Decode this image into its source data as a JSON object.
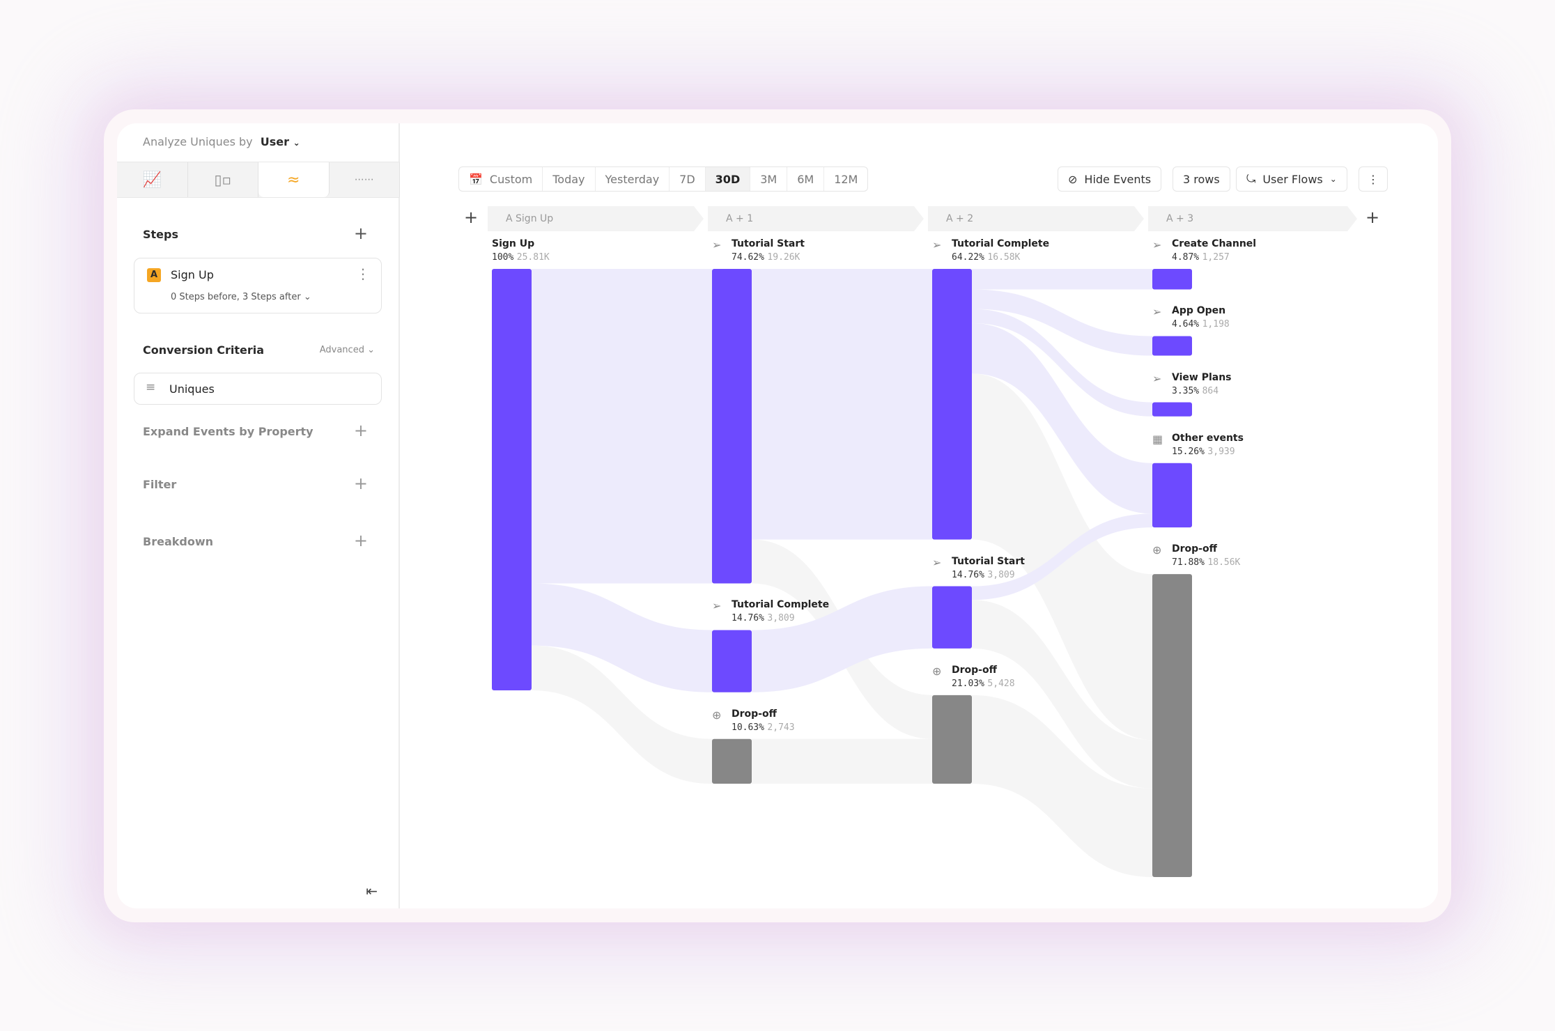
{
  "sidebar": {
    "analyze_label": "Analyze Uniques by",
    "analyze_value": "User",
    "tabs": [
      {
        "icon": "insights-icon"
      },
      {
        "icon": "funnels-icon"
      },
      {
        "icon": "flows-icon",
        "active": true
      },
      {
        "icon": "retention-icon"
      }
    ],
    "steps_title": "Steps",
    "step": {
      "badge": "A",
      "name": "Sign Up",
      "detail": "0 Steps before, 3 Steps after"
    },
    "conversion_title": "Conversion Criteria",
    "advanced_label": "Advanced",
    "uniques_label": "Uniques",
    "expand_label": "Expand Events by Property",
    "filter_label": "Filter",
    "breakdown_label": "Breakdown"
  },
  "toolbar": {
    "ranges": [
      "Custom",
      "Today",
      "Yesterday",
      "7D",
      "30D",
      "3M",
      "6M",
      "12M"
    ],
    "selected": "30D",
    "hide_events": "Hide Events",
    "rows": "3 rows",
    "view": "User Flows"
  },
  "colors": {
    "node": "#6d4aff",
    "dropoff": "#878787",
    "link": "#edebfc",
    "link_drop": "#f5f5f5",
    "active_tab": "#f5a623"
  },
  "chart_data": {
    "type": "sankey",
    "columns": [
      "A Sign Up",
      "A + 1",
      "A + 2",
      "A + 3"
    ],
    "nodes": [
      {
        "id": "s0",
        "col": 0,
        "name": "Sign Up",
        "pct": "100%",
        "count": "25.81K",
        "value": 100,
        "icon": ""
      },
      {
        "id": "a1ts",
        "col": 1,
        "name": "Tutorial Start",
        "pct": "74.62%",
        "count": "19.26K",
        "value": 74.62,
        "icon": "click"
      },
      {
        "id": "a1tc",
        "col": 1,
        "name": "Tutorial Complete",
        "pct": "14.76%",
        "count": "3,809",
        "value": 14.76,
        "icon": "click"
      },
      {
        "id": "a1do",
        "col": 1,
        "name": "Drop-off",
        "pct": "10.63%",
        "count": "2,743",
        "value": 10.63,
        "icon": "drop"
      },
      {
        "id": "a2tc",
        "col": 2,
        "name": "Tutorial Complete",
        "pct": "64.22%",
        "count": "16.58K",
        "value": 64.22,
        "icon": "click"
      },
      {
        "id": "a2ts",
        "col": 2,
        "name": "Tutorial Start",
        "pct": "14.76%",
        "count": "3,809",
        "value": 14.76,
        "icon": "click"
      },
      {
        "id": "a2do",
        "col": 2,
        "name": "Drop-off",
        "pct": "21.03%",
        "count": "5,428",
        "value": 21.03,
        "icon": "drop"
      },
      {
        "id": "a3cc",
        "col": 3,
        "name": "Create Channel",
        "pct": "4.87%",
        "count": "1,257",
        "value": 4.87,
        "icon": "click"
      },
      {
        "id": "a3ao",
        "col": 3,
        "name": "App Open",
        "pct": "4.64%",
        "count": "1,198",
        "value": 4.64,
        "icon": "click"
      },
      {
        "id": "a3vp",
        "col": 3,
        "name": "View Plans",
        "pct": "3.35%",
        "count": "864",
        "value": 3.35,
        "icon": "click"
      },
      {
        "id": "a3ot",
        "col": 3,
        "name": "Other events",
        "pct": "15.26%",
        "count": "3,939",
        "value": 15.26,
        "icon": "grid"
      },
      {
        "id": "a3do",
        "col": 3,
        "name": "Drop-off",
        "pct": "71.88%",
        "count": "18.56K",
        "value": 71.88,
        "icon": "drop"
      }
    ],
    "links": [
      {
        "s": "s0",
        "t": "a1ts",
        "v": 74.62
      },
      {
        "s": "s0",
        "t": "a1tc",
        "v": 14.76
      },
      {
        "s": "s0",
        "t": "a1do",
        "v": 10.63
      },
      {
        "s": "a1ts",
        "t": "a2tc",
        "v": 64.22
      },
      {
        "s": "a1ts",
        "t": "a2do",
        "v": 10.4
      },
      {
        "s": "a1tc",
        "t": "a2ts",
        "v": 14.76
      },
      {
        "s": "a1do",
        "t": "a2do",
        "v": 10.63
      },
      {
        "s": "a2tc",
        "t": "a3cc",
        "v": 4.87
      },
      {
        "s": "a2tc",
        "t": "a3ao",
        "v": 4.64
      },
      {
        "s": "a2tc",
        "t": "a3vp",
        "v": 3.35
      },
      {
        "s": "a2tc",
        "t": "a3ot",
        "v": 12.0
      },
      {
        "s": "a2tc",
        "t": "a3do",
        "v": 39.36
      },
      {
        "s": "a2ts",
        "t": "a3ot",
        "v": 3.26
      },
      {
        "s": "a2ts",
        "t": "a3do",
        "v": 11.5
      },
      {
        "s": "a2do",
        "t": "a3do",
        "v": 21.03
      }
    ]
  }
}
